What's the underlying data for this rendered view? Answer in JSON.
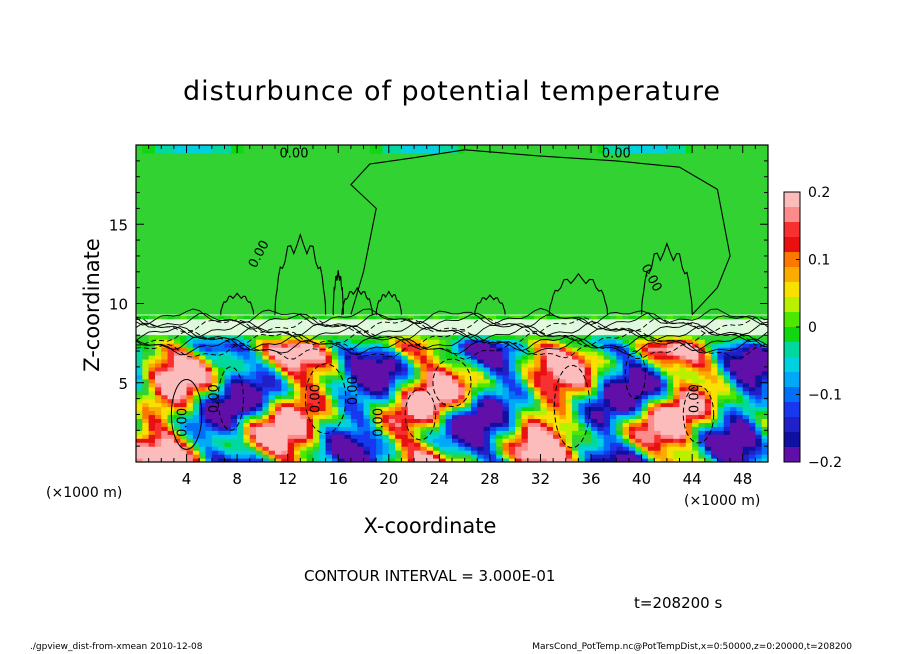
{
  "chart_data": {
    "type": "heatmap",
    "title": "disturbunce of potential temperature",
    "xlabel": "X-coordinate",
    "ylabel": "Z-coordinate",
    "x_unit": "(×1000 m)",
    "xlim": [
      0,
      50
    ],
    "ylim": [
      0,
      20
    ],
    "x_ticks": [
      4,
      8,
      12,
      16,
      20,
      24,
      28,
      32,
      36,
      40,
      44,
      48
    ],
    "y_ticks": [
      5,
      10,
      15
    ],
    "colorbar": {
      "range": [
        -0.2,
        0.2
      ],
      "ticks": [
        0.2,
        0.1,
        0,
        -0.1,
        -0.2
      ],
      "tick_labels": [
        "0.2",
        "0.1",
        "0",
        "−0.1",
        "−0.2"
      ],
      "colors": [
        "#fcbcbc",
        "#fc8c8c",
        "#f83030",
        "#e81010",
        "#fc7800",
        "#fcac00",
        "#f8e000",
        "#b8f000",
        "#4ce800",
        "#10d810",
        "#00d8a0",
        "#00d0e0",
        "#00a8f8",
        "#0070f8",
        "#1838f0",
        "#2020c8",
        "#1010a0",
        "#6010a8"
      ]
    },
    "contour_interval_text": "CONTOUR INTERVAL = 3.000E-01",
    "contour_labels": [
      "0.00",
      "0.00",
      "0.00",
      "0.00",
      "0.00",
      "0.00",
      "0.00",
      "0.00",
      "0.00",
      "0.00"
    ],
    "time_label": "t=208200 s",
    "footer_left": "./gpview_dist-from-xmean  2010-12-08",
    "footer_right": "MarsCond_PotTemp.nc@PotTempDist,x=0:50000,z=0:20000,t=208200",
    "colors": {
      "background_field": "#32d232",
      "frame": "#000000"
    }
  }
}
